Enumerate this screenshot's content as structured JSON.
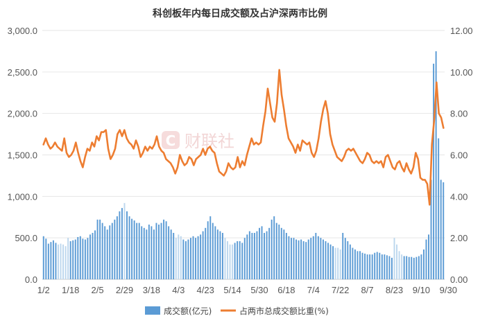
{
  "chart_data": {
    "type": "bar+line",
    "title": "科创板年内每日成交额及占沪深两市比例",
    "watermark": "财联社",
    "colors": {
      "bar": "#5b9bd5",
      "bar_light": "#bdd7ee",
      "line": "#ed7d31",
      "grid": "#e6e6e6"
    },
    "left_axis": {
      "min": 0,
      "max": 3000,
      "ticks": [
        "0.0",
        "500.0",
        "1,000.0",
        "1,500.0",
        "2,000.0",
        "2,500.0",
        "3,000.0"
      ]
    },
    "right_axis": {
      "min": 0,
      "max": 12,
      "ticks": [
        "0.00",
        "2.00",
        "4.00",
        "6.00",
        "8.00",
        "10.00",
        "12.00"
      ]
    },
    "x_ticks": [
      "1/2",
      "1/18",
      "2/5",
      "2/29",
      "3/18",
      "4/3",
      "4/23",
      "5/14",
      "5/30",
      "6/18",
      "7/4",
      "7/22",
      "8/7",
      "8/23",
      "9/10",
      "9/30"
    ],
    "x_tick_positions": [
      0,
      11,
      22,
      33,
      44,
      55,
      66,
      77,
      88,
      99,
      110,
      121,
      132,
      143,
      154,
      165
    ],
    "legend": [
      {
        "name": "成交额(亿元)",
        "type": "bar"
      },
      {
        "name": "占两市总成交额比重(%)",
        "type": "line"
      }
    ],
    "series": [
      {
        "name": "成交额(亿元)",
        "type": "bar",
        "values": [
          520,
          490,
          430,
          450,
          470,
          440,
          420,
          430,
          420,
          400,
          500,
          460,
          470,
          480,
          510,
          520,
          490,
          480,
          500,
          540,
          560,
          590,
          720,
          720,
          680,
          640,
          600,
          650,
          680,
          720,
          760,
          820,
          860,
          920,
          820,
          760,
          730,
          710,
          680,
          680,
          640,
          620,
          600,
          660,
          640,
          600,
          680,
          660,
          680,
          720,
          700,
          640,
          600,
          560,
          500,
          540,
          520,
          480,
          460,
          480,
          500,
          520,
          500,
          520,
          540,
          580,
          620,
          700,
          760,
          680,
          640,
          600,
          580,
          560,
          500,
          460,
          420,
          420,
          440,
          460,
          460,
          440,
          500,
          540,
          580,
          560,
          560,
          580,
          620,
          640,
          560,
          580,
          620,
          720,
          760,
          680,
          660,
          620,
          600,
          560,
          520,
          500,
          500,
          480,
          470,
          480,
          460,
          450,
          480,
          500,
          520,
          560,
          520,
          500,
          480,
          460,
          440,
          420,
          400,
          380,
          380,
          360,
          560,
          500,
          460,
          420,
          380,
          360,
          340,
          340,
          320,
          310,
          300,
          300,
          300,
          320,
          330,
          320,
          300,
          300,
          290,
          280,
          260,
          500,
          420,
          340,
          300,
          280,
          280,
          270,
          270,
          260,
          270,
          280,
          300,
          360,
          480,
          540,
          1200,
          2600,
          2750,
          1700,
          1200,
          1170
        ],
        "light": [
          false,
          false,
          false,
          false,
          false,
          false,
          true,
          true,
          true,
          true,
          true,
          false,
          false,
          false,
          false,
          false,
          false,
          false,
          false,
          false,
          false,
          false,
          false,
          false,
          false,
          false,
          false,
          false,
          false,
          false,
          false,
          false,
          false,
          true,
          false,
          false,
          false,
          false,
          false,
          false,
          false,
          false,
          false,
          false,
          false,
          false,
          false,
          false,
          false,
          false,
          false,
          false,
          false,
          false,
          true,
          true,
          true,
          false,
          false,
          false,
          false,
          false,
          false,
          false,
          false,
          false,
          false,
          false,
          false,
          false,
          false,
          false,
          false,
          false,
          true,
          true,
          true,
          true,
          false,
          false,
          false,
          false,
          false,
          false,
          false,
          false,
          false,
          false,
          false,
          false,
          false,
          false,
          false,
          false,
          false,
          false,
          false,
          false,
          false,
          false,
          false,
          false,
          false,
          false,
          false,
          false,
          false,
          false,
          false,
          false,
          false,
          false,
          false,
          false,
          false,
          false,
          false,
          false,
          false,
          true,
          true,
          true,
          false,
          false,
          false,
          false,
          false,
          false,
          false,
          false,
          false,
          false,
          false,
          false,
          false,
          false,
          false,
          false,
          false,
          false,
          false,
          false,
          false,
          true,
          true,
          true,
          true,
          false,
          false,
          false,
          false,
          false,
          false,
          false,
          false,
          false,
          false,
          false,
          false,
          false,
          false,
          false,
          false,
          false
        ]
      },
      {
        "name": "占两市总成交额比重(%)",
        "type": "line",
        "values": [
          6.5,
          6.8,
          6.5,
          6.3,
          6.4,
          6.6,
          6.4,
          6.3,
          6.2,
          6.8,
          6.1,
          5.9,
          6.0,
          6.2,
          6.6,
          6.1,
          5.7,
          5.4,
          5.9,
          6.3,
          6.2,
          6.6,
          6.4,
          6.9,
          6.7,
          7.1,
          7.1,
          7.2,
          6.3,
          5.8,
          6.0,
          6.3,
          7.0,
          7.2,
          6.9,
          7.2,
          6.8,
          6.6,
          6.5,
          6.3,
          6.7,
          6.4,
          5.9,
          6.1,
          6.4,
          6.2,
          6.4,
          6.3,
          6.5,
          6.9,
          6.4,
          6.2,
          6.1,
          5.8,
          5.7,
          5.6,
          5.4,
          5.1,
          5.4,
          6.0,
          5.7,
          5.5,
          5.6,
          5.9,
          5.8,
          5.5,
          5.8,
          5.9,
          6.0,
          6.3,
          6.0,
          6.3,
          6.4,
          6.2,
          6.1,
          5.6,
          5.2,
          5.1,
          5.0,
          5.2,
          5.6,
          5.4,
          5.3,
          5.4,
          5.9,
          5.4,
          5.7,
          5.5,
          6.0,
          6.4,
          6.8,
          6.5,
          6.6,
          6.5,
          6.6,
          7.4,
          8.1,
          9.2,
          8.5,
          7.8,
          7.6,
          8.5,
          10.1,
          8.9,
          8.2,
          7.4,
          6.8,
          6.6,
          6.4,
          6.1,
          6.5,
          6.2,
          6.7,
          6.6,
          6.5,
          6.6,
          6.1,
          5.9,
          6.2,
          6.8,
          7.6,
          8.2,
          8.6,
          8.0,
          7.0,
          6.5,
          6.2,
          5.9,
          5.8,
          5.7,
          5.9,
          6.2,
          6.3,
          6.2,
          6.3,
          6.1,
          5.9,
          5.7,
          5.6,
          5.8,
          6.1,
          6.0,
          5.7,
          5.6,
          5.7,
          5.6,
          5.7,
          5.4,
          5.9,
          6.0,
          5.7,
          5.4,
          5.3,
          5.6,
          5.7,
          5.4,
          5.2,
          5.6,
          5.3,
          5.1,
          5.4,
          6.1,
          5.8,
          4.9,
          4.8,
          4.8,
          4.6,
          3.6,
          6.5,
          7.7,
          9.5,
          8.0,
          7.8,
          7.3
        ],
        "line_x_count": 168
      }
    ]
  }
}
